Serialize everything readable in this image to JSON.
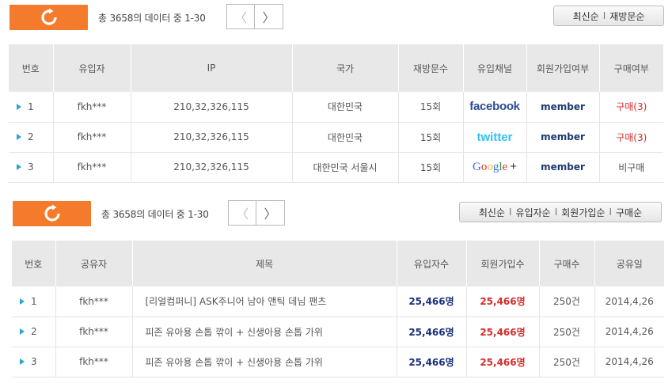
{
  "visitors_section": {
    "count_text": "총 3658의 데이터 중 1-30",
    "pager": {
      "prev": "〈",
      "next": "〉"
    },
    "sort_options": [
      "최신순",
      "재방문순"
    ],
    "columns": [
      "번호",
      "유입자",
      "IP",
      "국가",
      "재방문수",
      "유입채널",
      "회원가입여부",
      "구매여부"
    ],
    "rows": [
      {
        "no": "1",
        "user": "fkh***",
        "ip": "210,32,326,115",
        "country": "대한민국",
        "revisits": "15회",
        "channel": "facebook",
        "signup": "member",
        "purchase": "구매(3)",
        "purchased": true
      },
      {
        "no": "2",
        "user": "fkh***",
        "ip": "210,32,326,115",
        "country": "대한민국",
        "revisits": "15회",
        "channel": "twitter",
        "signup": "member",
        "purchase": "구매(3)",
        "purchased": true
      },
      {
        "no": "3",
        "user": "fkh***",
        "ip": "210,32,326,115",
        "country": "대한민국 서울시",
        "revisits": "15회",
        "channel": "Google +",
        "signup": "member",
        "purchase": "비구매",
        "purchased": false
      }
    ]
  },
  "shares_section": {
    "count_text": "총 3658의 데이터 중 1-30",
    "pager": {
      "prev": "〈",
      "next": "〉"
    },
    "sort_options": [
      "최신순",
      "유입자순",
      "회원가입순",
      "구매순"
    ],
    "columns": [
      "번호",
      "공유자",
      "제목",
      "유입자수",
      "회원가입수",
      "구매수",
      "공유일"
    ],
    "rows": [
      {
        "no": "1",
        "sharer": "fkh***",
        "title": "[리얼컴퍼니] ASK주니어 남아 앤틱 데님 팬츠",
        "visitors": "25,466명",
        "signups": "25,466명",
        "purchases": "250건",
        "date": "2014,4,26"
      },
      {
        "no": "2",
        "sharer": "fkh***",
        "title": "피존 유아용 손톱 깎이 + 신생아용 손톱 가위",
        "visitors": "25,466명",
        "signups": "25,466명",
        "purchases": "250건",
        "date": "2014,4,26"
      },
      {
        "no": "3",
        "sharer": "fkh***",
        "title": "피존 유아용 손톱 깎이 + 신생아용 손톱 가위",
        "visitors": "25,466명",
        "signups": "25,466명",
        "purchases": "250건",
        "date": "2014,4,26"
      }
    ]
  },
  "colors": {
    "accent": "#f47a2c",
    "row_marker": "#2aa7c9",
    "member": "#1c3a6e",
    "purchase": "#d62b2b"
  },
  "icons": {
    "refresh": "refresh-icon",
    "prev": "chevron-left-icon",
    "next": "chevron-right-icon",
    "row": "triangle-right-icon"
  }
}
